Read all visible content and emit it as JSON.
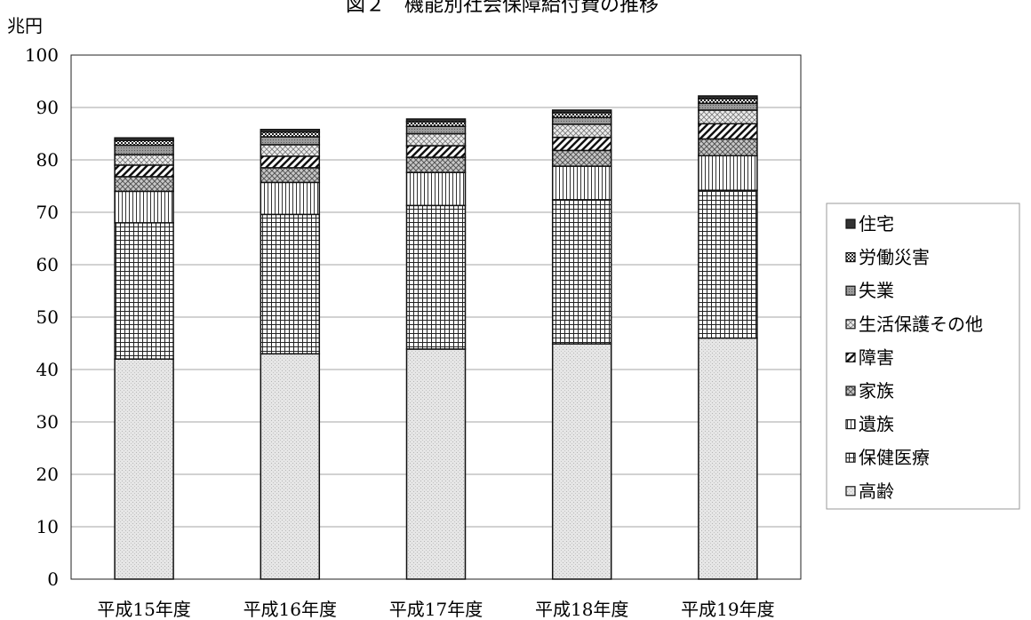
{
  "chart_data": {
    "type": "bar",
    "stacked": true,
    "title": "図２　機能別社会保障給付費の推移",
    "unit_label": "兆円",
    "categories": [
      "平成15年度",
      "平成16年度",
      "平成17年度",
      "平成18年度",
      "平成19年度"
    ],
    "ylim": [
      0,
      100
    ],
    "yticks": [
      "0",
      "10",
      "20",
      "30",
      "40",
      "50",
      "60",
      "70",
      "80",
      "90",
      "100"
    ],
    "grid": true,
    "legend_position": "right",
    "series": [
      {
        "name": "高齢",
        "pattern": "stipple",
        "values": [
          42.0,
          43.0,
          43.9,
          44.9,
          46.0
        ]
      },
      {
        "name": "保健医療",
        "pattern": "grid",
        "values": [
          26.0,
          26.6,
          27.4,
          27.5,
          28.2
        ]
      },
      {
        "name": "遺族",
        "pattern": "vertical",
        "values": [
          6.0,
          6.1,
          6.3,
          6.4,
          6.6
        ]
      },
      {
        "name": "家族",
        "pattern": "cross-dots",
        "values": [
          2.8,
          2.8,
          2.9,
          3.0,
          3.2
        ]
      },
      {
        "name": "障害",
        "pattern": "diagonal",
        "values": [
          2.2,
          2.2,
          2.2,
          2.5,
          2.9
        ]
      },
      {
        "name": "生活保護その他",
        "pattern": "crosshatch",
        "values": [
          2.0,
          2.2,
          2.3,
          2.5,
          2.6
        ]
      },
      {
        "name": "失業",
        "pattern": "dense-dots",
        "values": [
          1.8,
          1.5,
          1.4,
          1.3,
          1.3
        ]
      },
      {
        "name": "労働災害",
        "pattern": "checker",
        "values": [
          0.9,
          0.9,
          0.9,
          0.9,
          0.9
        ]
      },
      {
        "name": "住宅",
        "pattern": "dark",
        "values": [
          0.5,
          0.5,
          0.5,
          0.5,
          0.5
        ]
      }
    ],
    "colors": {
      "frame": "#222222",
      "grid": "#888888",
      "bar_outline": "#111111",
      "legend_border": "#9a9a9a"
    }
  }
}
